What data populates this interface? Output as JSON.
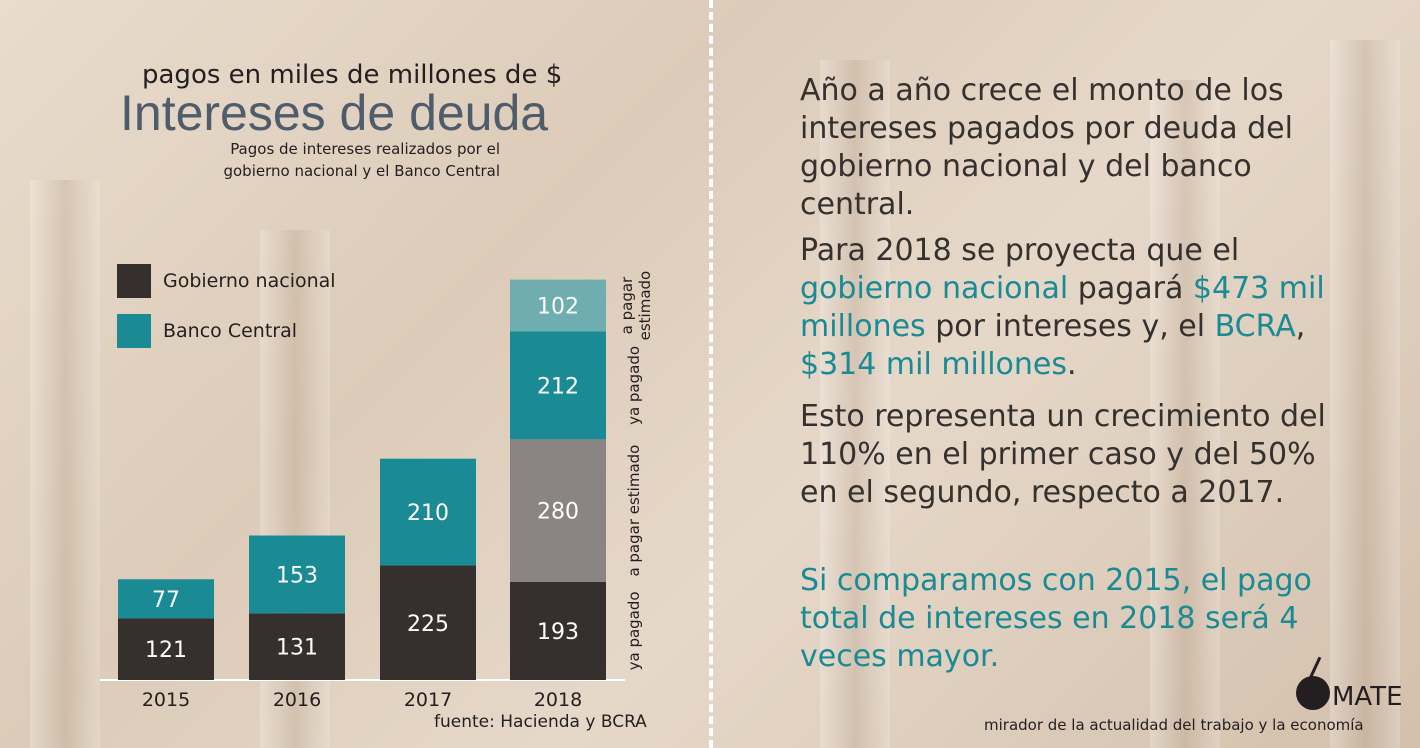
{
  "header": {
    "subtitle": "pagos en miles de millones de $",
    "title": "Intereses de deuda",
    "description": "Pagos de intereses realizados por el gobierno nacional y el Banco Central"
  },
  "legend": [
    {
      "label": "Gobierno nacional",
      "color": "#352f2d"
    },
    {
      "label": "Banco Central",
      "color": "#1a8a95"
    }
  ],
  "chart_data": {
    "type": "bar",
    "stacked": true,
    "categories": [
      "2015",
      "2016",
      "2017",
      "2018"
    ],
    "series": [
      {
        "name": "Gobierno nacional",
        "color": "#352f2d",
        "values": [
          121,
          131,
          225,
          193
        ],
        "note": "ya pagado"
      },
      {
        "name": "Gobierno nacional",
        "color": "#8a8482",
        "values": [
          null,
          null,
          null,
          280
        ],
        "note": "a pagar estimado"
      },
      {
        "name": "Banco Central",
        "color": "#1a8a95",
        "values": [
          77,
          153,
          210,
          212
        ],
        "note": "ya pagado"
      },
      {
        "name": "Banco Central",
        "color": "#6fadb0",
        "values": [
          null,
          null,
          null,
          102
        ],
        "note": "a pagar estimado"
      }
    ],
    "annotations_2018": [
      "ya pagado",
      "a pagar estimado",
      "ya pagado",
      "a pagar estimado"
    ],
    "ylim": [
      0,
      1030
    ],
    "grid": false
  },
  "source": "fuente: Hacienda y BCRA",
  "panel": {
    "p1": "Año a año crece el monto de los intereses pagados por deuda del gobierno nacional y del banco central.",
    "p2": {
      "t1": "Para 2018 se proyecta que el ",
      "a1": "gobierno nacional",
      "t2": " pagará ",
      "a2": "$473 mil millones",
      "t3": " por intereses y, el ",
      "a3": "BCRA",
      "t4": ", ",
      "a4": "$314 mil millones",
      "t5": "."
    },
    "p3": "Esto representa un crecimiento del 110% en el primer caso y del 50% en el segundo, respecto a 2017.",
    "p4": "Si comparamos con 2015, el pago total de intereses en 2018 será 4 veces mayor."
  },
  "brand": {
    "name": "MATE",
    "tagline": "mirador de la actualidad del trabajo y la economía"
  }
}
